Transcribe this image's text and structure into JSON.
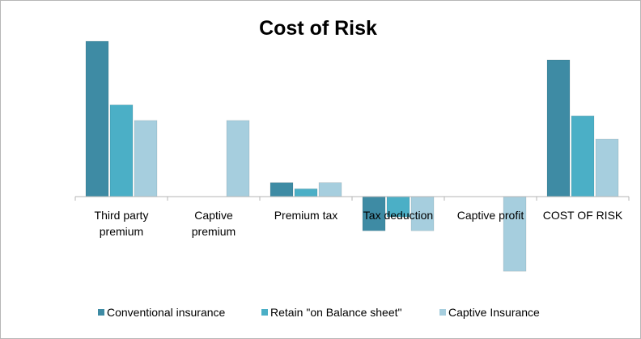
{
  "chart_data": {
    "type": "bar",
    "title": "Cost of Risk",
    "xlabel": "",
    "ylabel": "",
    "categories": [
      [
        "Third party",
        "premium"
      ],
      [
        "Captive",
        "premium"
      ],
      [
        "Premium tax"
      ],
      [
        "Tax deduction"
      ],
      [
        "Captive profit"
      ],
      [
        "COST OF RISK"
      ]
    ],
    "series": [
      {
        "name": "Conventional insurance",
        "color": "#3e8ba4",
        "values": [
          100,
          0,
          9,
          -22,
          0,
          88
        ]
      },
      {
        "name": "Retain \"on Balance sheet\"",
        "color": "#4bafc6",
        "values": [
          59,
          0,
          5,
          -13,
          0,
          52
        ]
      },
      {
        "name": "Captive Insurance",
        "color": "#a6cede",
        "values": [
          49,
          49,
          9,
          -22,
          -48,
          37
        ]
      }
    ],
    "ylim": [
      -55,
      110
    ],
    "grid": false,
    "legend": "bottom"
  }
}
